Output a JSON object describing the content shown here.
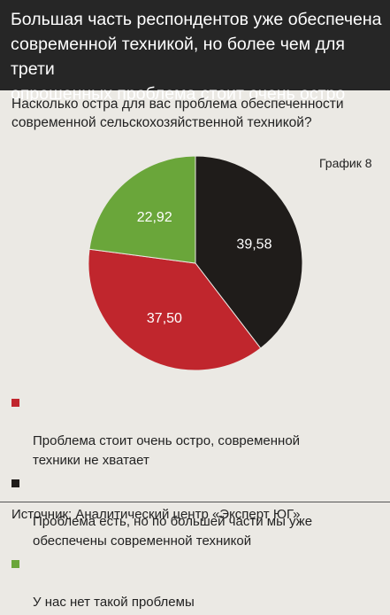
{
  "header": {
    "title": "Большая часть респондентов уже обеспечена\nсовременной техникой, но более чем для трети\nопрошенных проблема стоит очень остро"
  },
  "question": "Насколько остра для вас проблема обеспеченности\nсовременной сельскохозяйственной техникой?",
  "chart_label": "График 8",
  "chart_data": {
    "type": "pie",
    "title": "Насколько остра для вас проблема обеспеченности современной сельскохозяйственной техникой?",
    "slices": [
      {
        "label": "Проблема есть, но по большей части мы уже обеспечены современной  техникой",
        "value": 39.58,
        "value_label": "39,58",
        "color": "#1f1c1a",
        "label_color": "#ffffff"
      },
      {
        "label": "Проблема стоит очень остро, современной техники не хватает",
        "value": 37.5,
        "value_label": "37,50",
        "color": "#c0262d",
        "label_color": "#ffffff"
      },
      {
        "label": "У нас нет такой проблемы",
        "value": 22.92,
        "value_label": "22,92",
        "color": "#6aa63a",
        "label_color": "#ffffff"
      }
    ]
  },
  "legend": [
    {
      "label": "Проблема стоит очень остро, современной\nтехники не хватает",
      "color": "#c0262d"
    },
    {
      "label": "Проблема есть, но по большей части мы уже\nобеспечены современной  техникой",
      "color": "#1f1c1a"
    },
    {
      "label": "У нас нет такой проблемы",
      "color": "#6aa63a"
    }
  ],
  "source": "Источник: Аналитический центр «Эксперт ЮГ»"
}
